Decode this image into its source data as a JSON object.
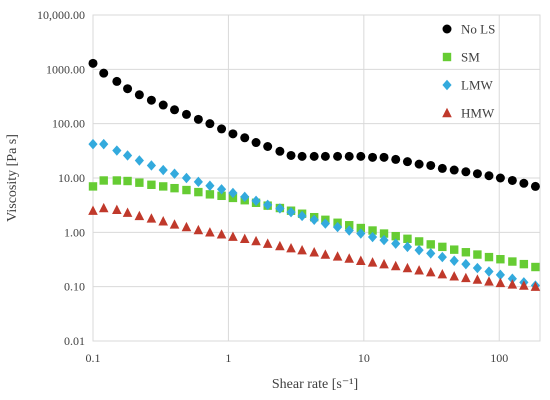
{
  "chart_data": {
    "type": "scatter",
    "title": "",
    "xlabel": "Shear rate [s⁻¹]",
    "ylabel": "Viscosity [Pa s]",
    "xscale": "log",
    "yscale": "log",
    "xlim": [
      0.1,
      200
    ],
    "ylim": [
      0.01,
      10000
    ],
    "grid": true,
    "legend_position": "top-right",
    "x_ticks": [
      {
        "value": 0.1,
        "label": "0.1"
      },
      {
        "value": 1,
        "label": "1"
      },
      {
        "value": 10,
        "label": "10"
      },
      {
        "value": 100,
        "label": "100"
      }
    ],
    "y_ticks": [
      {
        "value": 0.01,
        "label": "0.01"
      },
      {
        "value": 0.1,
        "label": "0.10"
      },
      {
        "value": 1,
        "label": "1.00"
      },
      {
        "value": 10,
        "label": "10.00"
      },
      {
        "value": 100,
        "label": "100.00"
      },
      {
        "value": 1000,
        "label": "1000.00"
      },
      {
        "value": 10000,
        "label": "10,000.00"
      }
    ],
    "series": [
      {
        "name": "No LS",
        "marker": "circle",
        "color": "#000000",
        "x": [
          0.1,
          0.12,
          0.15,
          0.18,
          0.22,
          0.27,
          0.33,
          0.4,
          0.49,
          0.6,
          0.73,
          0.89,
          1.08,
          1.32,
          1.6,
          1.95,
          2.4,
          2.9,
          3.5,
          4.3,
          5.2,
          6.4,
          7.8,
          9.5,
          11.6,
          14.1,
          17.2,
          21,
          25.6,
          31.2,
          38,
          46.5,
          56.7,
          69,
          84,
          102,
          125,
          152,
          185,
          210
        ],
        "y": [
          1290,
          850,
          600,
          440,
          340,
          270,
          220,
          180,
          148,
          120,
          100,
          80,
          65,
          55,
          45,
          38,
          31,
          26,
          25,
          25,
          25,
          25,
          25,
          25,
          24,
          24,
          22,
          20,
          18,
          17,
          15,
          14,
          13,
          12,
          11,
          10,
          9,
          8,
          7,
          6
        ]
      },
      {
        "name": "SM",
        "marker": "square",
        "color": "#66cc33",
        "x": [
          0.1,
          0.12,
          0.15,
          0.18,
          0.22,
          0.27,
          0.33,
          0.4,
          0.49,
          0.6,
          0.73,
          0.89,
          1.08,
          1.32,
          1.6,
          1.95,
          2.4,
          2.9,
          3.5,
          4.3,
          5.2,
          6.4,
          7.8,
          9.5,
          11.6,
          14.1,
          17.2,
          21,
          25.6,
          31.2,
          38,
          46.5,
          56.7,
          69,
          84,
          102,
          125,
          152,
          185,
          210
        ],
        "y": [
          7,
          9,
          9,
          8.8,
          8.2,
          7.5,
          7,
          6.5,
          6,
          5.5,
          5,
          4.7,
          4.3,
          3.9,
          3.5,
          3.1,
          2.8,
          2.5,
          2.2,
          1.9,
          1.7,
          1.5,
          1.35,
          1.2,
          1.08,
          0.95,
          0.85,
          0.76,
          0.68,
          0.6,
          0.54,
          0.48,
          0.43,
          0.39,
          0.35,
          0.32,
          0.29,
          0.26,
          0.23,
          0.22
        ]
      },
      {
        "name": "LMW",
        "marker": "diamond",
        "color": "#33aadd",
        "x": [
          0.1,
          0.12,
          0.15,
          0.18,
          0.22,
          0.27,
          0.33,
          0.4,
          0.49,
          0.6,
          0.73,
          0.89,
          1.08,
          1.32,
          1.6,
          1.95,
          2.4,
          2.9,
          3.5,
          4.3,
          5.2,
          6.4,
          7.8,
          9.5,
          11.6,
          14.1,
          17.2,
          21,
          25.6,
          31.2,
          38,
          46.5,
          56.7,
          69,
          84,
          102,
          125,
          152,
          185,
          210
        ],
        "y": [
          42,
          42,
          32,
          26,
          21,
          17,
          14,
          12,
          10,
          8.5,
          7.2,
          6.2,
          5.3,
          4.5,
          3.8,
          3.2,
          2.75,
          2.35,
          2,
          1.7,
          1.45,
          1.25,
          1.08,
          0.95,
          0.82,
          0.72,
          0.62,
          0.54,
          0.47,
          0.41,
          0.35,
          0.3,
          0.26,
          0.22,
          0.19,
          0.165,
          0.14,
          0.12,
          0.105,
          0.1
        ]
      },
      {
        "name": "HMW",
        "marker": "triangle",
        "color": "#c0392b",
        "x": [
          0.1,
          0.12,
          0.15,
          0.18,
          0.22,
          0.27,
          0.33,
          0.4,
          0.49,
          0.6,
          0.73,
          0.89,
          1.08,
          1.32,
          1.6,
          1.95,
          2.4,
          2.9,
          3.5,
          4.3,
          5.2,
          6.4,
          7.8,
          9.5,
          11.6,
          14.1,
          17.2,
          21,
          25.6,
          31.2,
          38,
          46.5,
          56.7,
          69,
          84,
          102,
          125,
          152,
          185,
          210
        ],
        "y": [
          2.5,
          2.8,
          2.6,
          2.3,
          2,
          1.8,
          1.6,
          1.4,
          1.25,
          1.1,
          1,
          0.92,
          0.83,
          0.76,
          0.69,
          0.62,
          0.56,
          0.51,
          0.47,
          0.43,
          0.39,
          0.36,
          0.33,
          0.3,
          0.28,
          0.26,
          0.24,
          0.22,
          0.2,
          0.185,
          0.17,
          0.155,
          0.145,
          0.135,
          0.125,
          0.117,
          0.11,
          0.105,
          0.1,
          0.097
        ]
      }
    ]
  }
}
